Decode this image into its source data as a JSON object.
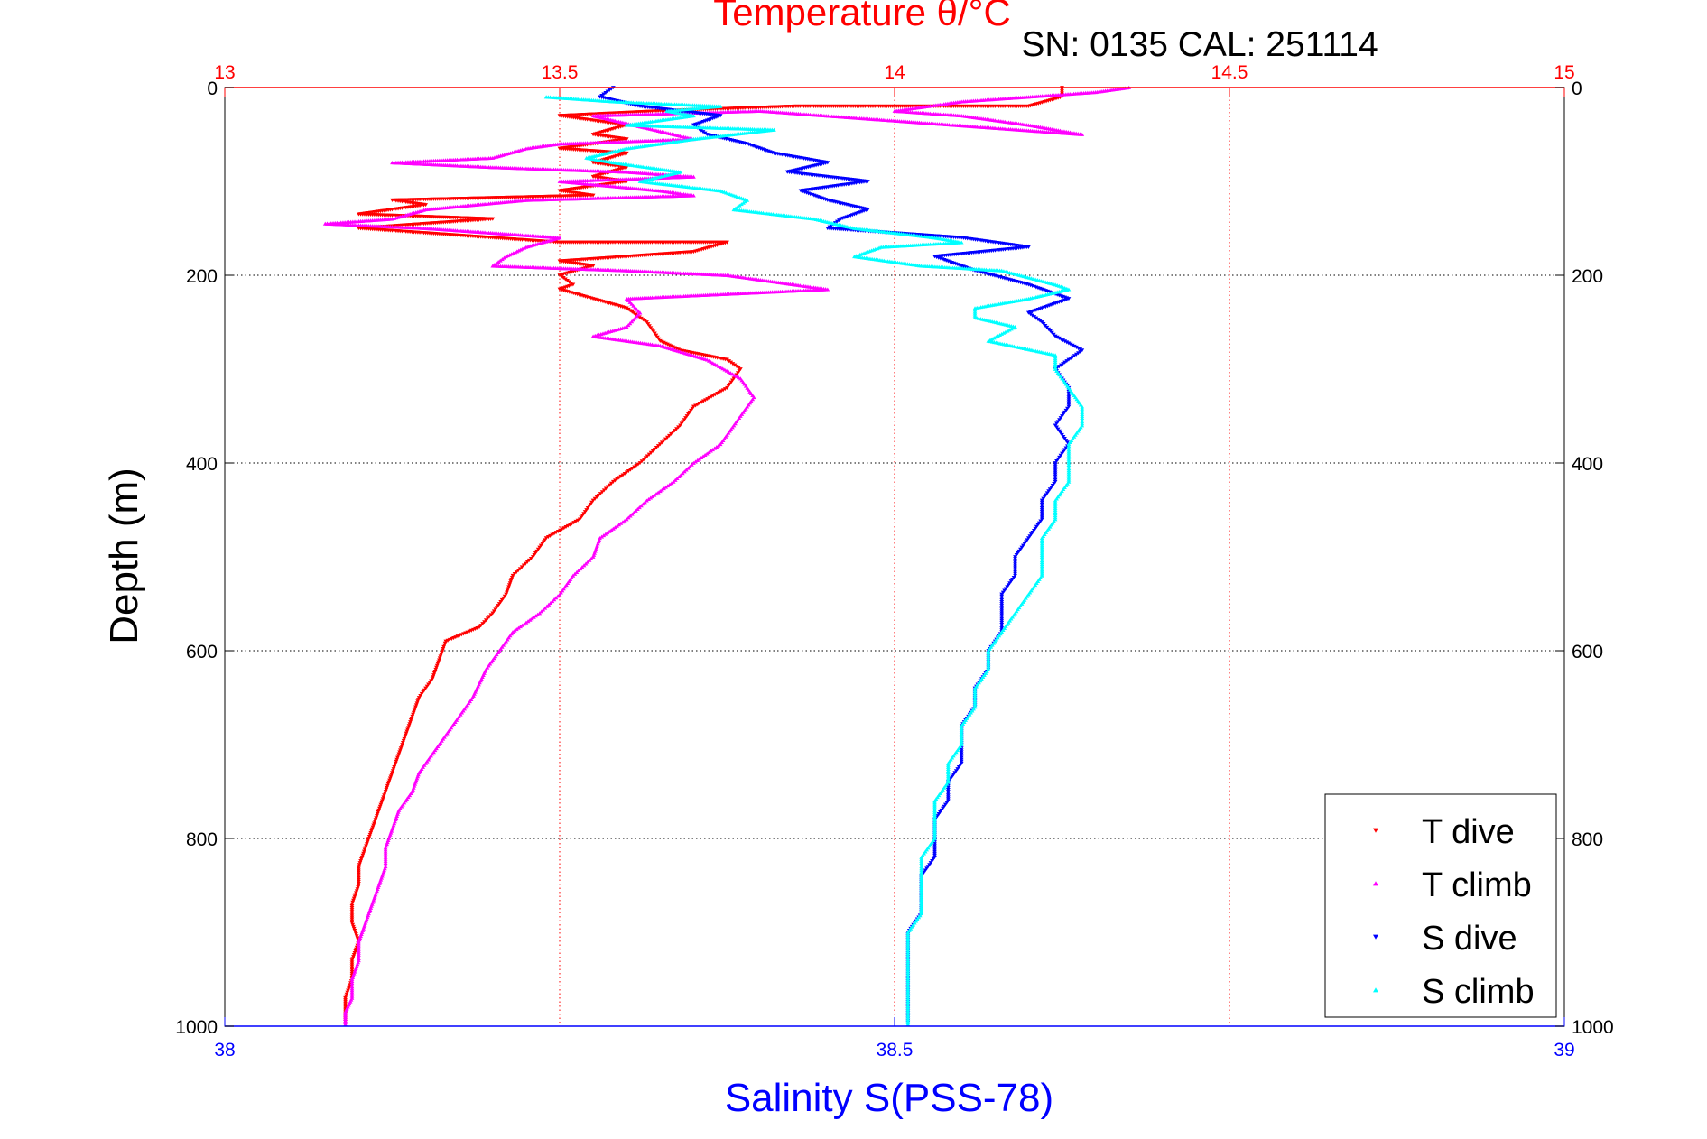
{
  "chart_data": {
    "type": "scatter",
    "title": "Temperature θ/°C",
    "subtitle": "SN: 0135  CAL: 251114",
    "ylabel": "Depth (m)",
    "xlabel_bottom": "Salinity S(PSS-78)",
    "y_reversed": true,
    "ylim": [
      0,
      1000
    ],
    "yticks": [
      "0",
      "200",
      "400",
      "600",
      "800",
      "1000"
    ],
    "temperature_axis": {
      "position": "top",
      "lim": [
        13,
        15
      ],
      "ticks": [
        "13",
        "13.5",
        "14",
        "14.5",
        "15"
      ],
      "color": "#ff0000"
    },
    "salinity_axis": {
      "position": "bottom",
      "lim": [
        38,
        39
      ],
      "ticks": [
        "38",
        "38.5",
        "39"
      ],
      "color": "#0000ff"
    },
    "grid": true,
    "legend_position": "bottom-right",
    "series": [
      {
        "name": "T dive",
        "axis": "temperature",
        "color": "#ff0000",
        "marker": "triangle-down",
        "points": [
          [
            14.25,
            0
          ],
          [
            14.25,
            10
          ],
          [
            14.2,
            20
          ],
          [
            13.85,
            20
          ],
          [
            13.65,
            25
          ],
          [
            13.5,
            30
          ],
          [
            13.6,
            40
          ],
          [
            13.55,
            50
          ],
          [
            13.6,
            55
          ],
          [
            13.5,
            65
          ],
          [
            13.6,
            70
          ],
          [
            13.55,
            80
          ],
          [
            13.6,
            85
          ],
          [
            13.55,
            95
          ],
          [
            13.6,
            100
          ],
          [
            13.5,
            110
          ],
          [
            13.55,
            115
          ],
          [
            13.25,
            120
          ],
          [
            13.3,
            125
          ],
          [
            13.2,
            135
          ],
          [
            13.4,
            140
          ],
          [
            13.2,
            150
          ],
          [
            13.3,
            155
          ],
          [
            13.5,
            165
          ],
          [
            13.75,
            165
          ],
          [
            13.7,
            175
          ],
          [
            13.6,
            180
          ],
          [
            13.5,
            185
          ],
          [
            13.55,
            190
          ],
          [
            13.5,
            200
          ],
          [
            13.52,
            210
          ],
          [
            13.5,
            215
          ],
          [
            13.55,
            225
          ],
          [
            13.6,
            235
          ],
          [
            13.63,
            250
          ],
          [
            13.65,
            270
          ],
          [
            13.68,
            280
          ],
          [
            13.75,
            290
          ],
          [
            13.77,
            300
          ],
          [
            13.75,
            320
          ],
          [
            13.7,
            340
          ],
          [
            13.68,
            360
          ],
          [
            13.65,
            380
          ],
          [
            13.62,
            400
          ],
          [
            13.58,
            420
          ],
          [
            13.55,
            440
          ],
          [
            13.53,
            460
          ],
          [
            13.48,
            480
          ],
          [
            13.46,
            500
          ],
          [
            13.43,
            520
          ],
          [
            13.42,
            540
          ],
          [
            13.4,
            560
          ],
          [
            13.38,
            575
          ],
          [
            13.33,
            590
          ],
          [
            13.32,
            610
          ],
          [
            13.31,
            630
          ],
          [
            13.29,
            650
          ],
          [
            13.28,
            670
          ],
          [
            13.27,
            690
          ],
          [
            13.26,
            710
          ],
          [
            13.25,
            730
          ],
          [
            13.24,
            750
          ],
          [
            13.23,
            770
          ],
          [
            13.22,
            790
          ],
          [
            13.21,
            810
          ],
          [
            13.2,
            830
          ],
          [
            13.2,
            850
          ],
          [
            13.19,
            870
          ],
          [
            13.19,
            890
          ],
          [
            13.2,
            910
          ],
          [
            13.19,
            930
          ],
          [
            13.19,
            950
          ],
          [
            13.18,
            970
          ],
          [
            13.18,
            985
          ],
          [
            13.18,
            995
          ]
        ]
      },
      {
        "name": "T climb",
        "axis": "temperature",
        "color": "#ff00ff",
        "marker": "triangle-up",
        "points": [
          [
            14.35,
            0
          ],
          [
            14.3,
            5
          ],
          [
            14.2,
            10
          ],
          [
            14.1,
            15
          ],
          [
            14.05,
            20
          ],
          [
            14.0,
            25
          ],
          [
            14.1,
            30
          ],
          [
            14.2,
            40
          ],
          [
            14.28,
            50
          ],
          [
            13.8,
            25
          ],
          [
            13.55,
            30
          ],
          [
            13.7,
            55
          ],
          [
            13.5,
            60
          ],
          [
            13.45,
            65
          ],
          [
            13.4,
            75
          ],
          [
            13.25,
            80
          ],
          [
            13.4,
            85
          ],
          [
            13.6,
            90
          ],
          [
            13.7,
            95
          ],
          [
            13.5,
            100
          ],
          [
            13.65,
            110
          ],
          [
            13.7,
            115
          ],
          [
            13.45,
            120
          ],
          [
            13.3,
            130
          ],
          [
            13.25,
            140
          ],
          [
            13.15,
            145
          ],
          [
            13.3,
            150
          ],
          [
            13.5,
            160
          ],
          [
            13.45,
            170
          ],
          [
            13.42,
            180
          ],
          [
            13.4,
            190
          ],
          [
            13.6,
            195
          ],
          [
            13.75,
            200
          ],
          [
            13.85,
            210
          ],
          [
            13.9,
            215
          ],
          [
            13.75,
            220
          ],
          [
            13.6,
            225
          ],
          [
            13.62,
            240
          ],
          [
            13.6,
            255
          ],
          [
            13.55,
            265
          ],
          [
            13.65,
            275
          ],
          [
            13.72,
            290
          ],
          [
            13.77,
            310
          ],
          [
            13.79,
            330
          ],
          [
            13.77,
            350
          ],
          [
            13.74,
            380
          ],
          [
            13.7,
            400
          ],
          [
            13.67,
            420
          ],
          [
            13.63,
            440
          ],
          [
            13.6,
            460
          ],
          [
            13.56,
            480
          ],
          [
            13.55,
            500
          ],
          [
            13.52,
            520
          ],
          [
            13.5,
            540
          ],
          [
            13.47,
            560
          ],
          [
            13.43,
            580
          ],
          [
            13.41,
            600
          ],
          [
            13.39,
            620
          ],
          [
            13.37,
            650
          ],
          [
            13.35,
            670
          ],
          [
            13.33,
            690
          ],
          [
            13.31,
            710
          ],
          [
            13.29,
            730
          ],
          [
            13.28,
            750
          ],
          [
            13.26,
            770
          ],
          [
            13.25,
            790
          ],
          [
            13.24,
            810
          ],
          [
            13.24,
            830
          ],
          [
            13.23,
            850
          ],
          [
            13.22,
            870
          ],
          [
            13.21,
            890
          ],
          [
            13.2,
            910
          ],
          [
            13.2,
            930
          ],
          [
            13.19,
            950
          ],
          [
            13.19,
            970
          ],
          [
            13.18,
            985
          ],
          [
            13.18,
            998
          ]
        ]
      },
      {
        "name": "S dive",
        "axis": "salinity",
        "color": "#0000ff",
        "marker": "triangle-down",
        "points": [
          [
            38.29,
            0
          ],
          [
            38.28,
            10
          ],
          [
            38.31,
            20
          ],
          [
            38.37,
            30
          ],
          [
            38.35,
            40
          ],
          [
            38.36,
            50
          ],
          [
            38.39,
            60
          ],
          [
            38.41,
            70
          ],
          [
            38.45,
            80
          ],
          [
            38.42,
            90
          ],
          [
            38.48,
            100
          ],
          [
            38.43,
            110
          ],
          [
            38.45,
            120
          ],
          [
            38.48,
            130
          ],
          [
            38.46,
            140
          ],
          [
            38.45,
            150
          ],
          [
            38.5,
            155
          ],
          [
            38.55,
            160
          ],
          [
            38.6,
            170
          ],
          [
            38.53,
            180
          ],
          [
            38.56,
            195
          ],
          [
            38.6,
            210
          ],
          [
            38.63,
            225
          ],
          [
            38.6,
            240
          ],
          [
            38.61,
            250
          ],
          [
            38.62,
            265
          ],
          [
            38.64,
            280
          ],
          [
            38.62,
            300
          ],
          [
            38.63,
            320
          ],
          [
            38.63,
            340
          ],
          [
            38.62,
            360
          ],
          [
            38.63,
            380
          ],
          [
            38.62,
            400
          ],
          [
            38.62,
            420
          ],
          [
            38.61,
            440
          ],
          [
            38.61,
            460
          ],
          [
            38.6,
            480
          ],
          [
            38.59,
            500
          ],
          [
            38.59,
            520
          ],
          [
            38.58,
            540
          ],
          [
            38.58,
            560
          ],
          [
            38.58,
            580
          ],
          [
            38.57,
            600
          ],
          [
            38.57,
            620
          ],
          [
            38.56,
            640
          ],
          [
            38.56,
            660
          ],
          [
            38.55,
            680
          ],
          [
            38.55,
            700
          ],
          [
            38.55,
            720
          ],
          [
            38.54,
            740
          ],
          [
            38.54,
            760
          ],
          [
            38.53,
            780
          ],
          [
            38.53,
            800
          ],
          [
            38.53,
            820
          ],
          [
            38.52,
            840
          ],
          [
            38.52,
            860
          ],
          [
            38.52,
            880
          ],
          [
            38.51,
            900
          ],
          [
            38.51,
            920
          ],
          [
            38.51,
            940
          ],
          [
            38.51,
            960
          ],
          [
            38.51,
            980
          ],
          [
            38.51,
            998
          ]
        ]
      },
      {
        "name": "S climb",
        "axis": "salinity",
        "color": "#00ffff",
        "marker": "triangle-up",
        "points": [
          [
            38.24,
            10
          ],
          [
            38.29,
            15
          ],
          [
            38.37,
            20
          ],
          [
            38.33,
            25
          ],
          [
            38.35,
            30
          ],
          [
            38.3,
            40
          ],
          [
            38.41,
            45
          ],
          [
            38.35,
            55
          ],
          [
            38.3,
            65
          ],
          [
            38.27,
            75
          ],
          [
            38.29,
            80
          ],
          [
            38.34,
            90
          ],
          [
            38.31,
            100
          ],
          [
            38.37,
            110
          ],
          [
            38.39,
            120
          ],
          [
            38.38,
            130
          ],
          [
            38.44,
            140
          ],
          [
            38.47,
            150
          ],
          [
            38.53,
            160
          ],
          [
            38.55,
            165
          ],
          [
            38.49,
            170
          ],
          [
            38.47,
            180
          ],
          [
            38.52,
            190
          ],
          [
            38.58,
            195
          ],
          [
            38.62,
            210
          ],
          [
            38.63,
            215
          ],
          [
            38.6,
            225
          ],
          [
            38.56,
            235
          ],
          [
            38.56,
            245
          ],
          [
            38.59,
            255
          ],
          [
            38.57,
            270
          ],
          [
            38.62,
            285
          ],
          [
            38.62,
            300
          ],
          [
            38.63,
            320
          ],
          [
            38.64,
            340
          ],
          [
            38.64,
            360
          ],
          [
            38.63,
            380
          ],
          [
            38.63,
            400
          ],
          [
            38.63,
            420
          ],
          [
            38.62,
            440
          ],
          [
            38.62,
            460
          ],
          [
            38.61,
            480
          ],
          [
            38.61,
            500
          ],
          [
            38.61,
            520
          ],
          [
            38.6,
            540
          ],
          [
            38.59,
            560
          ],
          [
            38.58,
            580
          ],
          [
            38.57,
            600
          ],
          [
            38.57,
            620
          ],
          [
            38.56,
            640
          ],
          [
            38.56,
            660
          ],
          [
            38.55,
            680
          ],
          [
            38.55,
            700
          ],
          [
            38.54,
            720
          ],
          [
            38.54,
            740
          ],
          [
            38.53,
            760
          ],
          [
            38.53,
            780
          ],
          [
            38.53,
            800
          ],
          [
            38.52,
            820
          ],
          [
            38.52,
            840
          ],
          [
            38.52,
            860
          ],
          [
            38.52,
            880
          ],
          [
            38.51,
            900
          ],
          [
            38.51,
            920
          ],
          [
            38.51,
            940
          ],
          [
            38.51,
            960
          ],
          [
            38.51,
            980
          ],
          [
            38.51,
            998
          ]
        ]
      }
    ]
  }
}
